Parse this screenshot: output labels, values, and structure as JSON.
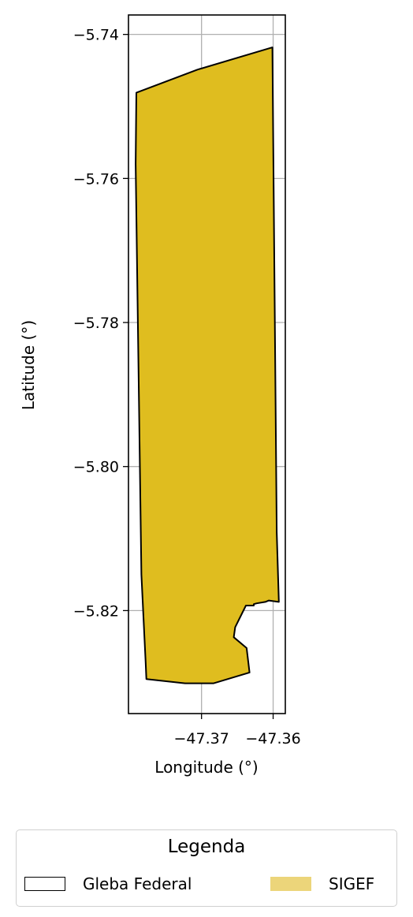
{
  "chart_data": {
    "type": "map",
    "xlabel": "Longitude (°)",
    "ylabel": "Latitude (°)",
    "xlim": [
      -47.3802,
      -47.3583
    ],
    "ylim": [
      -5.8343,
      -5.7373
    ],
    "x_ticks": [
      {
        "value": -47.37,
        "label": "−47.37"
      },
      {
        "value": -47.36,
        "label": "−47.36"
      }
    ],
    "y_ticks": [
      {
        "value": -5.74,
        "label": "−5.74"
      },
      {
        "value": -5.76,
        "label": "−5.76"
      },
      {
        "value": -5.78,
        "label": "−5.78"
      },
      {
        "value": -5.8,
        "label": "−5.80"
      },
      {
        "value": -5.82,
        "label": "−5.82"
      }
    ],
    "grid": true,
    "layers": [
      {
        "name": "SIGEF",
        "fill": "#dfbd1f",
        "stroke": "#000000",
        "polygon": [
          [
            -47.3791,
            -5.7481
          ],
          [
            -47.3706,
            -5.7449
          ],
          [
            -47.3601,
            -5.7418
          ],
          [
            -47.3595,
            -5.8091
          ],
          [
            -47.3592,
            -5.8188
          ],
          [
            -47.3606,
            -5.8186
          ],
          [
            -47.3611,
            -5.8188
          ],
          [
            -47.3623,
            -5.819
          ],
          [
            -47.3627,
            -5.8191
          ],
          [
            -47.3627,
            -5.8193
          ],
          [
            -47.3638,
            -5.8193
          ],
          [
            -47.3653,
            -5.8223
          ],
          [
            -47.3655,
            -5.8237
          ],
          [
            -47.3637,
            -5.8252
          ],
          [
            -47.3633,
            -5.8286
          ],
          [
            -47.3683,
            -5.8301
          ],
          [
            -47.3723,
            -5.8301
          ],
          [
            -47.3777,
            -5.8295
          ],
          [
            -47.3778,
            -5.8272
          ],
          [
            -47.3784,
            -5.815
          ],
          [
            -47.3792,
            -5.758
          ]
        ]
      }
    ],
    "legend": {
      "title": "Legenda",
      "placement": "bottom-center",
      "entries": [
        {
          "label": "Gleba Federal",
          "style": "outline",
          "color": "#000000"
        },
        {
          "label": "SIGEF",
          "style": "fill",
          "color": "#ecd57a"
        }
      ]
    }
  }
}
